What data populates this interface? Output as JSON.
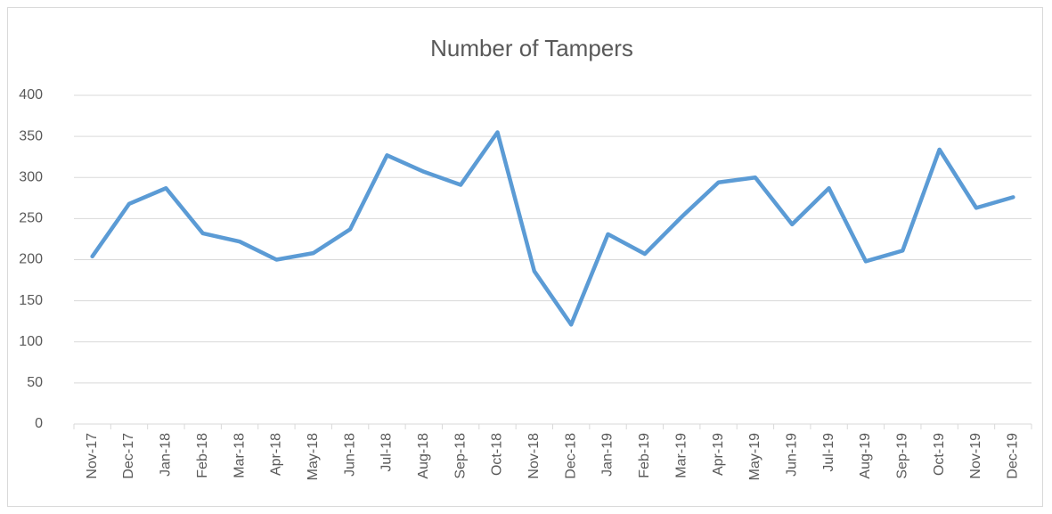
{
  "chart_data": {
    "type": "line",
    "title": "Number of Tampers",
    "categories": [
      "Nov-17",
      "Dec-17",
      "Jan-18",
      "Feb-18",
      "Mar-18",
      "Apr-18",
      "May-18",
      "Jun-18",
      "Jul-18",
      "Aug-18",
      "Sep-18",
      "Oct-18",
      "Nov-18",
      "Dec-18",
      "Jan-19",
      "Feb-19",
      "Mar-19",
      "Apr-19",
      "May-19",
      "Jun-19",
      "Jul-19",
      "Aug-19",
      "Sep-19",
      "Oct-19",
      "Nov-19",
      "Dec-19"
    ],
    "series": [
      {
        "name": "Number of Tampers",
        "color": "#5b9bd5",
        "values": [
          204,
          268,
          287,
          232,
          222,
          200,
          208,
          237,
          327,
          307,
          291,
          355,
          186,
          121,
          231,
          207,
          252,
          294,
          300,
          243,
          287,
          198,
          211,
          334,
          263,
          276
        ]
      }
    ],
    "ylim": [
      0,
      400
    ],
    "yticks": [
      0,
      50,
      100,
      150,
      200,
      250,
      300,
      350,
      400
    ],
    "grid": true
  }
}
